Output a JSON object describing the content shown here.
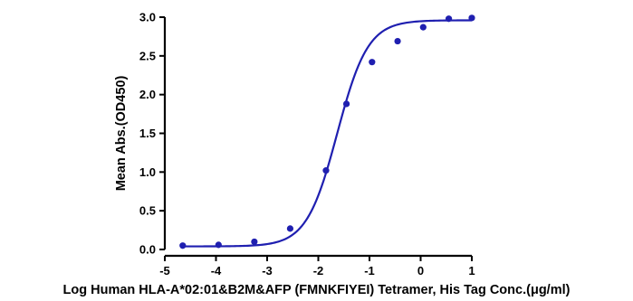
{
  "chart_data": {
    "type": "scatter",
    "title": "",
    "xlabel": "Log Human HLA-A*02:01&B2M&AFP (FMNKFIYEI) Tetramer, His Tag Conc.(μg/ml)",
    "ylabel": "Mean Abs.(OD450)",
    "xlim": [
      -5,
      1
    ],
    "ylim": [
      0,
      3.0
    ],
    "x_ticks": [
      -5,
      -4,
      -3,
      -2,
      -1,
      0,
      1
    ],
    "x_tick_labels": [
      "-5",
      "-4",
      "-3",
      "-2",
      "-1",
      "0",
      "1"
    ],
    "y_ticks": [
      0,
      0.5,
      1.0,
      1.5,
      2.0,
      2.5,
      3.0
    ],
    "y_tick_labels": [
      "0.0",
      "0.5",
      "1.0",
      "1.5",
      "2.0",
      "2.5",
      "3.0"
    ],
    "grid": false,
    "legend": "none",
    "colors": {
      "series": "#1f1fb0",
      "axis": "#000000"
    },
    "series": [
      {
        "points": [
          {
            "x": -4.65,
            "y": 0.05
          },
          {
            "x": -3.95,
            "y": 0.06
          },
          {
            "x": -3.25,
            "y": 0.1
          },
          {
            "x": -2.55,
            "y": 0.27
          },
          {
            "x": -1.85,
            "y": 1.02
          },
          {
            "x": -1.45,
            "y": 1.88
          },
          {
            "x": -0.95,
            "y": 2.42
          },
          {
            "x": -0.45,
            "y": 2.69
          },
          {
            "x": 0.05,
            "y": 2.87
          },
          {
            "x": 0.55,
            "y": 2.98
          },
          {
            "x": 1.0,
            "y": 2.99
          }
        ],
        "fit": {
          "model": "4PL",
          "bottom": 0.04,
          "top": 2.96,
          "log_ec50": -1.63,
          "hill": 1.45,
          "x_range": [
            -4.65,
            1.0
          ]
        }
      }
    ]
  }
}
